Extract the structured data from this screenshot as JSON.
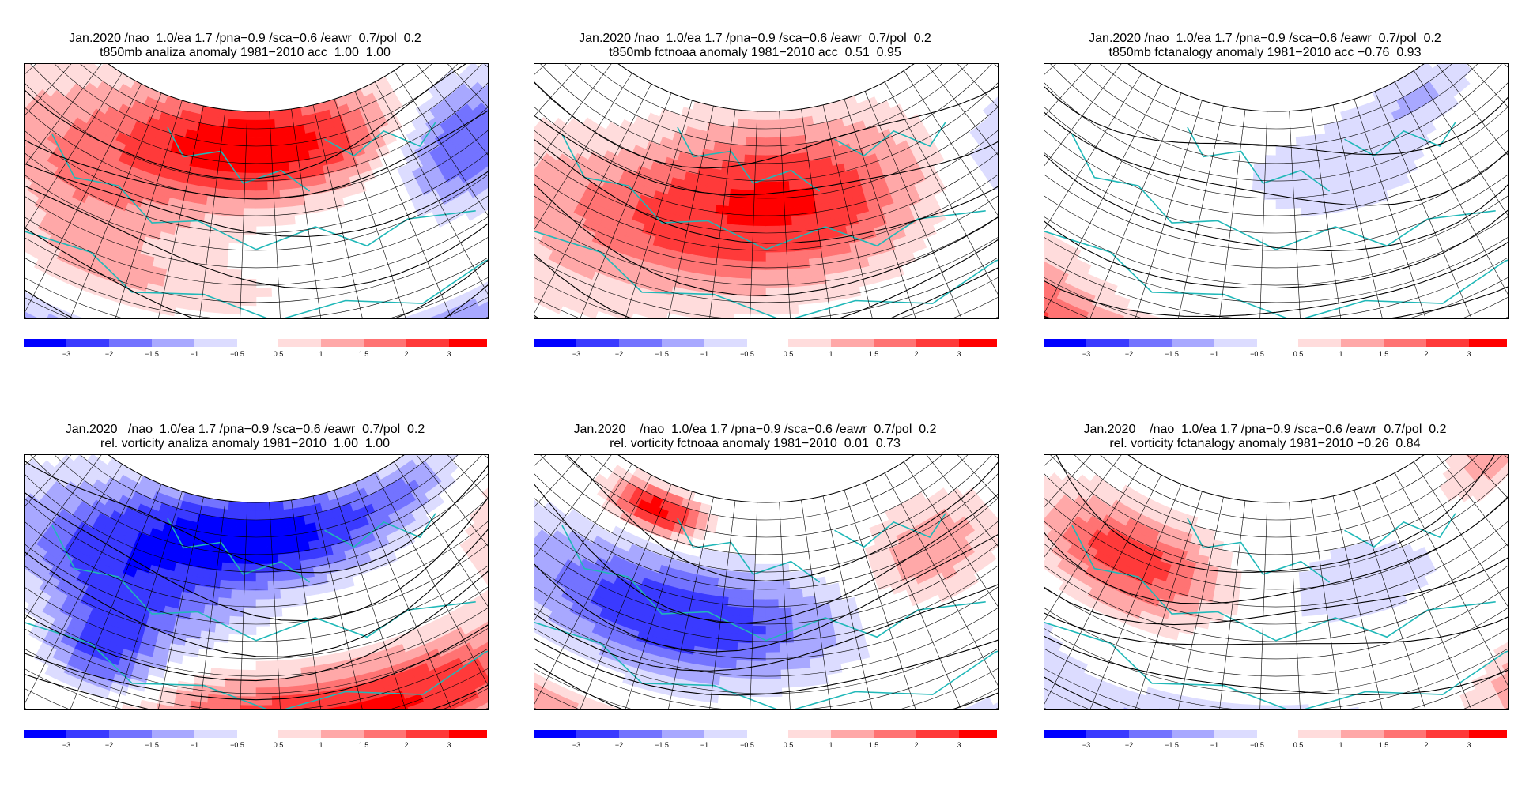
{
  "panels": [
    {
      "line1": "Jan.2020 /nao  1.0/ea 1.7 /pna−0.9 /sca−0.6 /eawr  0.7/pol  0.2",
      "line2": "t850mb analiza anomaly 1981−2010 acc  1.00  1.00",
      "pattern": "a"
    },
    {
      "line1": "Jan.2020 /nao  1.0/ea 1.7 /pna−0.9 /sca−0.6 /eawr  0.7/pol  0.2",
      "line2": "t850mb fctnoaa anomaly 1981−2010 acc  0.51  0.95",
      "pattern": "b"
    },
    {
      "line1": "Jan.2020 /nao  1.0/ea 1.7 /pna−0.9 /sca−0.6 /eawr  0.7/pol  0.2",
      "line2": "t850mb fctanalogy anomaly 1981−2010 acc −0.76  0.93",
      "pattern": "c"
    },
    {
      "line1": "Jan.2020   /nao  1.0/ea 1.7 /pna−0.9 /sca−0.6 /eawr  0.7/pol  0.2",
      "line2": "rel. vorticity analiza anomaly 1981−2010  1.00  1.00",
      "pattern": "d"
    },
    {
      "line1": "Jan.2020    /nao  1.0/ea 1.7 /pna−0.9 /sca−0.6 /eawr  0.7/pol  0.2",
      "line2": "rel. vorticity fctnoaa anomaly 1981−2010  0.01  0.73",
      "pattern": "e"
    },
    {
      "line1": "Jan.2020    /nao  1.0/ea 1.7 /pna−0.9 /sca−0.6 /eawr  0.7/pol  0.2",
      "line2": "rel. vorticity fctanalogy anomaly 1981−2010 −0.26  0.84",
      "pattern": "f"
    }
  ],
  "colorbar": {
    "labels": [
      "−3",
      "−2",
      "−1.5",
      "−1",
      "−0.5",
      "0.5",
      "1",
      "1.5",
      "2",
      "3"
    ],
    "colors_neg": [
      "#0000ff",
      "#3a3aff",
      "#7373ff",
      "#a8a8ff",
      "#dcdcff"
    ],
    "colors_pos": [
      "#ffdcdc",
      "#ffa8a8",
      "#ff7373",
      "#ff3a3a",
      "#ff0000"
    ]
  },
  "colors": {
    "coast": "#20b8b8",
    "grid": "#000000"
  }
}
